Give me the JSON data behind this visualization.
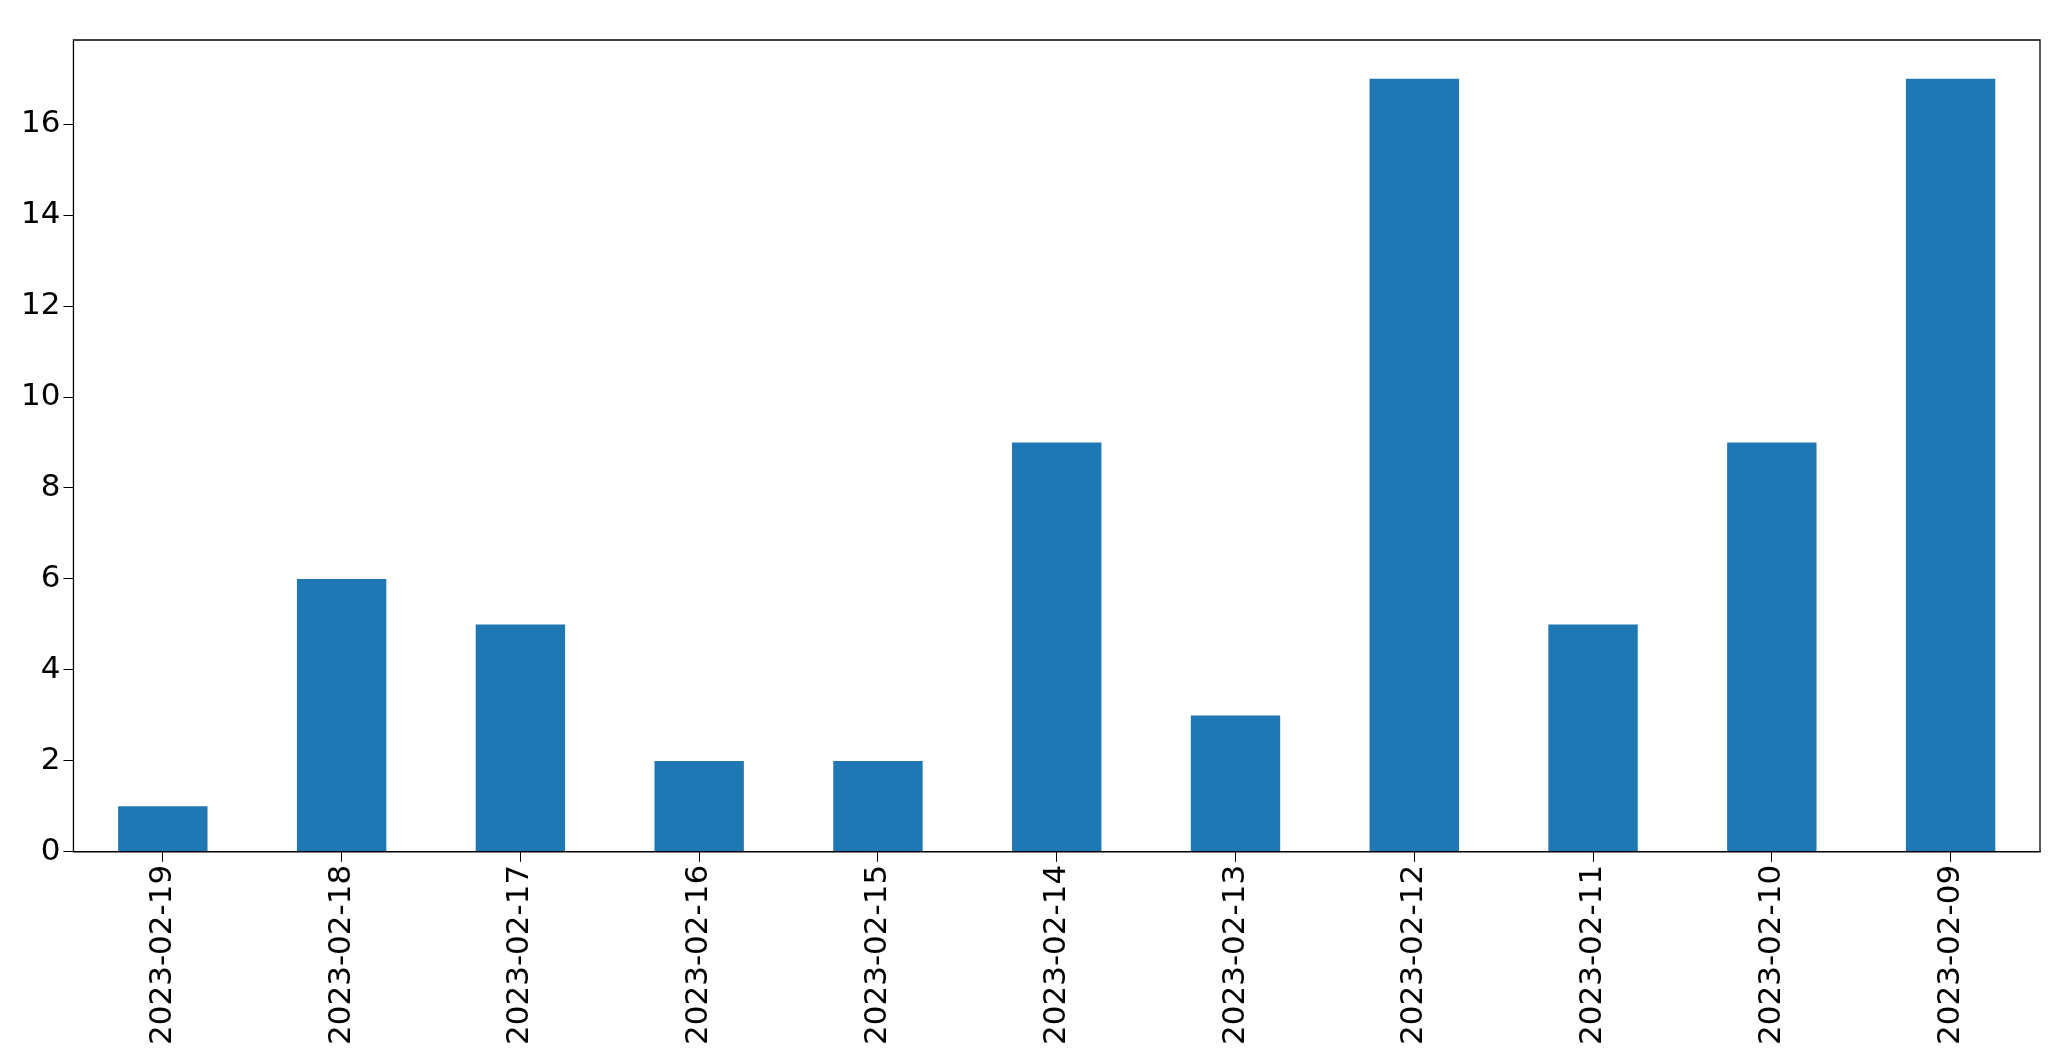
{
  "chart_data": {
    "type": "bar",
    "categories": [
      "2023-02-19",
      "2023-02-18",
      "2023-02-17",
      "2023-02-16",
      "2023-02-15",
      "2023-02-14",
      "2023-02-13",
      "2023-02-12",
      "2023-02-11",
      "2023-02-10",
      "2023-02-09"
    ],
    "values": [
      1,
      6,
      5,
      2,
      2,
      9,
      3,
      17,
      5,
      9,
      17
    ],
    "color": "#1f77b4",
    "ylim": [
      0,
      17.85
    ],
    "yticks": [
      0,
      2,
      4,
      6,
      8,
      10,
      12,
      14,
      16
    ],
    "grid": false,
    "legend": false
  }
}
